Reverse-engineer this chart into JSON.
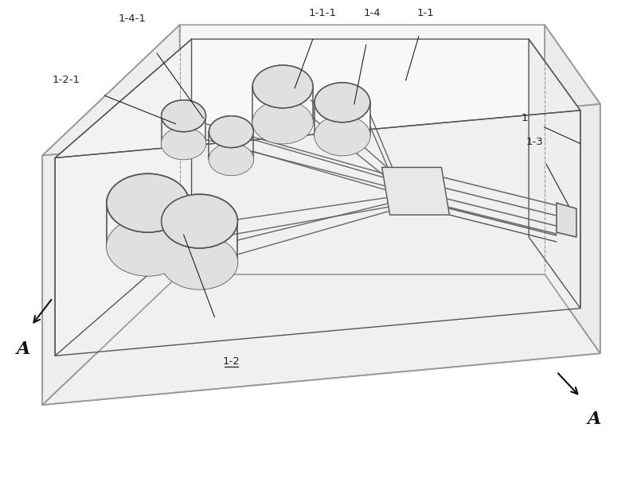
{
  "bg_color": "#ffffff",
  "lc": "#999999",
  "dc": "#555555",
  "bc": "#333333",
  "figsize": [
    8.0,
    6.06
  ],
  "dpi": 100
}
